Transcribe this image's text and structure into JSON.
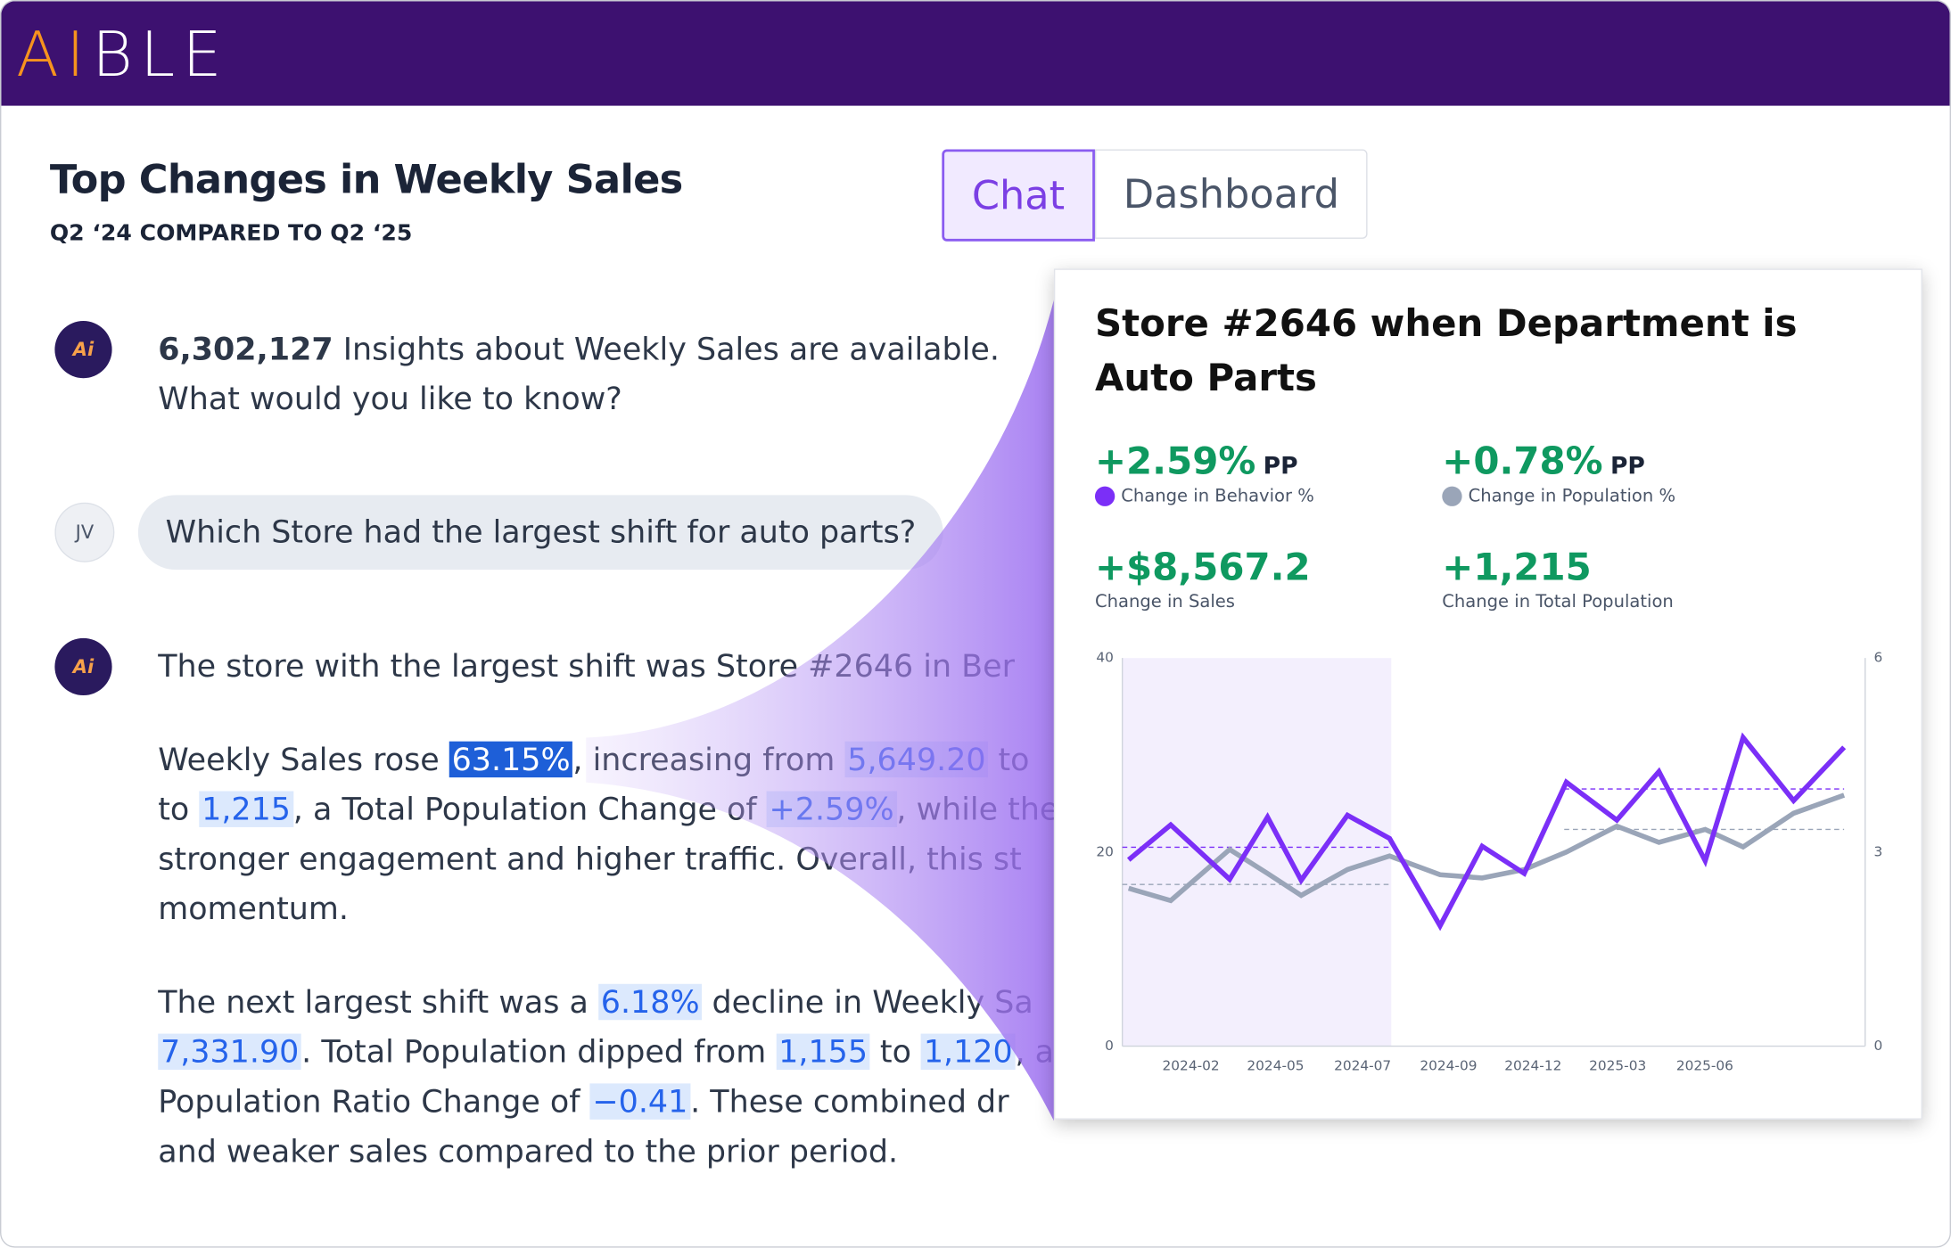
{
  "header": {
    "logo": "AIBLE"
  },
  "page": {
    "title": "Top Changes in Weekly Sales",
    "subtitle": "Q2 ‘24 COMPARED TO Q2 ‘25"
  },
  "tabs": [
    {
      "label": "Chat",
      "active": true
    },
    {
      "label": "Dashboard",
      "active": false
    }
  ],
  "messages": [
    {
      "sender": "bot",
      "avatar": "Ai",
      "paragraphs": [
        [
          [
            {
              "text": "6,302,127",
              "style": "bold"
            },
            {
              "text": " Insights about Weekly Sales are available.",
              "style": "plain"
            }
          ],
          [
            {
              "text": "What would you like to know?",
              "style": "plain"
            }
          ]
        ]
      ]
    },
    {
      "sender": "user",
      "avatar": "JV",
      "paragraphs": [
        [
          [
            {
              "text": "Which Store had the largest shift for auto parts?",
              "style": "plain"
            }
          ]
        ]
      ]
    },
    {
      "sender": "bot",
      "avatar": "Ai",
      "paragraphs": [
        [
          [
            {
              "text": "The store with the largest shift was Store #2646 in Ber",
              "style": "plain"
            }
          ]
        ],
        [
          [
            {
              "text": "Weekly Sales rose ",
              "style": "plain"
            },
            {
              "text": "63.15%",
              "style": "strong"
            },
            {
              "text": ", increasing from ",
              "style": "plain"
            },
            {
              "text": "5,649.20",
              "style": "highlight"
            },
            {
              "text": " to",
              "style": "plain"
            }
          ],
          [
            {
              "text": "to ",
              "style": "plain"
            },
            {
              "text": "1,215",
              "style": "highlight"
            },
            {
              "text": ", a Total Population Change of ",
              "style": "plain"
            },
            {
              "text": "+2.59%",
              "style": "highlight"
            },
            {
              "text": ", while the",
              "style": "plain"
            }
          ],
          [
            {
              "text": "stronger engagement and higher traffic. Overall, this st",
              "style": "plain"
            }
          ],
          [
            {
              "text": "momentum.",
              "style": "plain"
            }
          ]
        ],
        [
          [
            {
              "text": "The next largest shift was a ",
              "style": "plain"
            },
            {
              "text": "6.18%",
              "style": "highlight"
            },
            {
              "text": " decline in Weekly Sa",
              "style": "plain"
            }
          ],
          [
            {
              "text": "7,331.90",
              "style": "highlight"
            },
            {
              "text": ". Total Population dipped from ",
              "style": "plain"
            },
            {
              "text": "1,155",
              "style": "highlight"
            },
            {
              "text": " to ",
              "style": "plain"
            },
            {
              "text": "1,120",
              "style": "highlight"
            },
            {
              "text": ", a",
              "style": "plain"
            }
          ],
          [
            {
              "text": "Population Ratio Change of ",
              "style": "plain"
            },
            {
              "text": "−0.41",
              "style": "highlight"
            },
            {
              "text": ". These combined dr",
              "style": "plain"
            }
          ],
          [
            {
              "text": "and weaker sales compared to the prior period.",
              "style": "plain"
            }
          ]
        ]
      ]
    }
  ],
  "card": {
    "kpis": [
      {
        "value": "+2.59%",
        "unit": "PP",
        "label": "Change in Behavior %",
        "color": "#7b2ff7"
      },
      {
        "value": "+0.78%",
        "unit": "PP",
        "label": "Change in Population %",
        "color": "#9aa5b8"
      },
      {
        "value": "+$8,567.2",
        "label": "Change in Sales"
      },
      {
        "value": "+1,215",
        "label": "Change in Total Population"
      }
    ]
  },
  "chart_data": {
    "type": "line",
    "title": "Store #2646 when Department is Auto Parts",
    "x": [
      0,
      1.0,
      2.4,
      3.3,
      4.1,
      5.2,
      6.2,
      7.4,
      8.4,
      9.4,
      10.4,
      11.6,
      12.6,
      13.7,
      14.6,
      15.8,
      17
    ],
    "xlim": [
      -0.15,
      17.5
    ],
    "xticks": [
      {
        "value": 1.48,
        "label": "2024-02"
      },
      {
        "value": 3.49,
        "label": "2024-05"
      },
      {
        "value": 5.56,
        "label": "2024-07"
      },
      {
        "value": 7.6,
        "label": "2024-09"
      },
      {
        "value": 9.61,
        "label": "2024-12"
      },
      {
        "value": 11.62,
        "label": "2025-03"
      },
      {
        "value": 13.69,
        "label": "2025-06"
      }
    ],
    "ylim": [
      0,
      40
    ],
    "yticks": [
      0,
      20,
      40
    ],
    "y2lim": [
      0,
      6
    ],
    "y2ticks": [
      0,
      3,
      6
    ],
    "series": [
      {
        "color": "#9aa5b8",
        "axis": "y2",
        "values": [
          2.44,
          2.25,
          3.04,
          2.67,
          2.33,
          2.73,
          2.94,
          2.65,
          2.6,
          2.73,
          3.0,
          3.4,
          3.15,
          3.35,
          3.08,
          3.6,
          3.88
        ]
      },
      {
        "color": "#7b2ff7",
        "axis": "y",
        "values": [
          19.2,
          22.8,
          17.2,
          23.6,
          17.1,
          23.8,
          21.4,
          12.4,
          20.6,
          17.8,
          27.2,
          23.3,
          28.3,
          19.1,
          31.8,
          25.3,
          30.8
        ]
      }
    ],
    "shaded_band": {
      "x": [
        -0.15,
        6.24
      ],
      "color": "#f3effd"
    },
    "reference_lines": [
      {
        "axis": "y",
        "value": 20.5,
        "x": [
          -0.15,
          6.24
        ],
        "color": "#7b2ff7"
      },
      {
        "axis": "y",
        "value": 26.5,
        "x": [
          10.35,
          17
        ],
        "color": "#7b2ff7"
      },
      {
        "axis": "y2",
        "value": 2.5,
        "x": [
          -0.15,
          6.24
        ],
        "color": "#9aa5b8"
      },
      {
        "axis": "y2",
        "value": 3.35,
        "x": [
          10.35,
          17
        ],
        "color": "#9aa5b8"
      }
    ]
  }
}
